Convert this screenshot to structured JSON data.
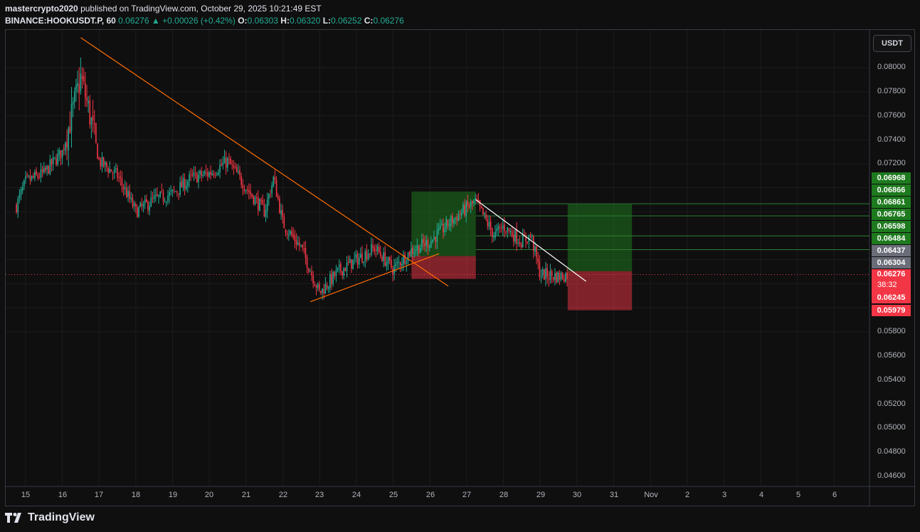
{
  "header": {
    "author": "mastercrypto2020",
    "published_text": "published on TradingView.com, October 29, 2025 10:21:49 EST",
    "symbol": "BINANCE:HOOKUSDT.P, 60",
    "last": "0.06276",
    "change": "+0.00026 (+0.42%)",
    "o_label": "O:",
    "o_value": "0.06303",
    "h_label": "H:",
    "h_value": "0.06320",
    "l_label": "L:",
    "l_value": "0.06252",
    "c_label": "C:",
    "c_value": "0.06276"
  },
  "currency_button": "USDT",
  "footer": {
    "brand": "TradingView"
  },
  "y_axis_labels": [
    "0.08000",
    "0.07800",
    "0.07600",
    "0.07400",
    "0.07200",
    "0.05800",
    "0.05600",
    "0.05400",
    "0.05200",
    "0.05000",
    "0.04800",
    "0.04600"
  ],
  "x_axis_labels": [
    "15",
    "16",
    "17",
    "18",
    "19",
    "20",
    "21",
    "22",
    "23",
    "24",
    "25",
    "26",
    "27",
    "28",
    "29",
    "30",
    "31",
    "Nov",
    "2",
    "3",
    "4",
    "5",
    "6"
  ],
  "price_tags": [
    {
      "value": "0.06968",
      "color": "#1e7a1e"
    },
    {
      "value": "0.06866",
      "color": "#1e7a1e"
    },
    {
      "value": "0.06861",
      "color": "#1e7a1e"
    },
    {
      "value": "0.06765",
      "color": "#1e7a1e"
    },
    {
      "value": "0.06598",
      "color": "#1e7a1e"
    },
    {
      "value": "0.06484",
      "color": "#1e7a1e"
    },
    {
      "value": "0.06437",
      "color": "#6a6d78"
    },
    {
      "value": "0.06304",
      "color": "#6a6d78"
    },
    {
      "value": "0.06276",
      "color": "#f23645"
    },
    {
      "value": "0.06245",
      "color": "#f23645"
    },
    {
      "value": "0.05979",
      "color": "#f23645"
    }
  ],
  "countdown": "38:32",
  "colors": {
    "up": "#22ab94",
    "down": "#f23645",
    "trendline": "#ff6d00",
    "background": "#0f0f0f"
  },
  "chart_data": {
    "type": "candlestick",
    "title": "",
    "symbol": "HOOKUSDT.P",
    "interval": "60",
    "ylim": [
      0.0455,
      0.0822
    ],
    "x_range_days": [
      "Oct 14",
      "Nov 7"
    ],
    "grid": true,
    "current_price": 0.06276,
    "close_path": [
      {
        "day": "Oct 14 18:00",
        "close": 0.0685
      },
      {
        "day": "Oct 15",
        "close": 0.0705
      },
      {
        "day": "Oct 15 12:00",
        "close": 0.0712
      },
      {
        "day": "Oct 16",
        "close": 0.073
      },
      {
        "day": "Oct 16 06:00",
        "close": 0.076
      },
      {
        "day": "Oct 16 12:00",
        "close": 0.0792
      },
      {
        "day": "Oct 16 18:00",
        "close": 0.076
      },
      {
        "day": "Oct 17",
        "close": 0.0722
      },
      {
        "day": "Oct 17 12:00",
        "close": 0.071
      },
      {
        "day": "Oct 18",
        "close": 0.068
      },
      {
        "day": "Oct 18 12:00",
        "close": 0.069
      },
      {
        "day": "Oct 19",
        "close": 0.0695
      },
      {
        "day": "Oct 19 12:00",
        "close": 0.0708
      },
      {
        "day": "Oct 20",
        "close": 0.0712
      },
      {
        "day": "Oct 20 12:00",
        "close": 0.0722
      },
      {
        "day": "Oct 21",
        "close": 0.07
      },
      {
        "day": "Oct 21 12:00",
        "close": 0.068
      },
      {
        "day": "Oct 21 18:00",
        "close": 0.0708
      },
      {
        "day": "Oct 22",
        "close": 0.067
      },
      {
        "day": "Oct 22 12:00",
        "close": 0.065
      },
      {
        "day": "Oct 23",
        "close": 0.0612
      },
      {
        "day": "Oct 23 12:00",
        "close": 0.063
      },
      {
        "day": "Oct 24",
        "close": 0.064
      },
      {
        "day": "Oct 24 12:00",
        "close": 0.065
      },
      {
        "day": "Oct 25",
        "close": 0.0632
      },
      {
        "day": "Oct 25 12:00",
        "close": 0.0648
      },
      {
        "day": "Oct 26",
        "close": 0.0655
      },
      {
        "day": "Oct 26 12:00",
        "close": 0.067
      },
      {
        "day": "Oct 27",
        "close": 0.0683
      },
      {
        "day": "Oct 27 06:00",
        "close": 0.0688
      },
      {
        "day": "Oct 27 18:00",
        "close": 0.066
      },
      {
        "day": "Oct 28",
        "close": 0.0668
      },
      {
        "day": "Oct 28 12:00",
        "close": 0.0655
      },
      {
        "day": "Oct 28 18:00",
        "close": 0.066
      },
      {
        "day": "Oct 29",
        "close": 0.0628
      },
      {
        "day": "Oct 29 12:00",
        "close": 0.0626
      },
      {
        "day": "Oct 29 18:00",
        "close": 0.06276
      }
    ],
    "drawings": [
      {
        "type": "trendline",
        "color": "#ff6d00",
        "from": {
          "day": "Oct 16 12:00",
          "price": 0.0825
        },
        "to": {
          "day": "Oct 26 12:00",
          "price": 0.0618
        }
      },
      {
        "type": "trendline",
        "color": "#ff6d00",
        "from": {
          "day": "Oct 22 18:00",
          "price": 0.0605
        },
        "to": {
          "day": "Oct 26 06:00",
          "price": 0.0645
        }
      },
      {
        "type": "trendline",
        "color": "#ffffff",
        "from": {
          "day": "Oct 27 06:00",
          "price": 0.069
        },
        "to": {
          "day": "Oct 30 06:00",
          "price": 0.0622
        }
      },
      {
        "type": "long_position",
        "entry": 0.0643,
        "target": 0.06968,
        "stop": 0.0624,
        "start": "Oct 25 12:00",
        "end": "Oct 27 06:00"
      },
      {
        "type": "long_position",
        "entry": 0.06304,
        "target": 0.06861,
        "stop": 0.05979,
        "start": "Oct 29 18:00",
        "end": "Oct 31 12:00"
      }
    ],
    "horizontal_levels": [
      0.06866,
      0.06765,
      0.06598,
      0.06484
    ]
  }
}
